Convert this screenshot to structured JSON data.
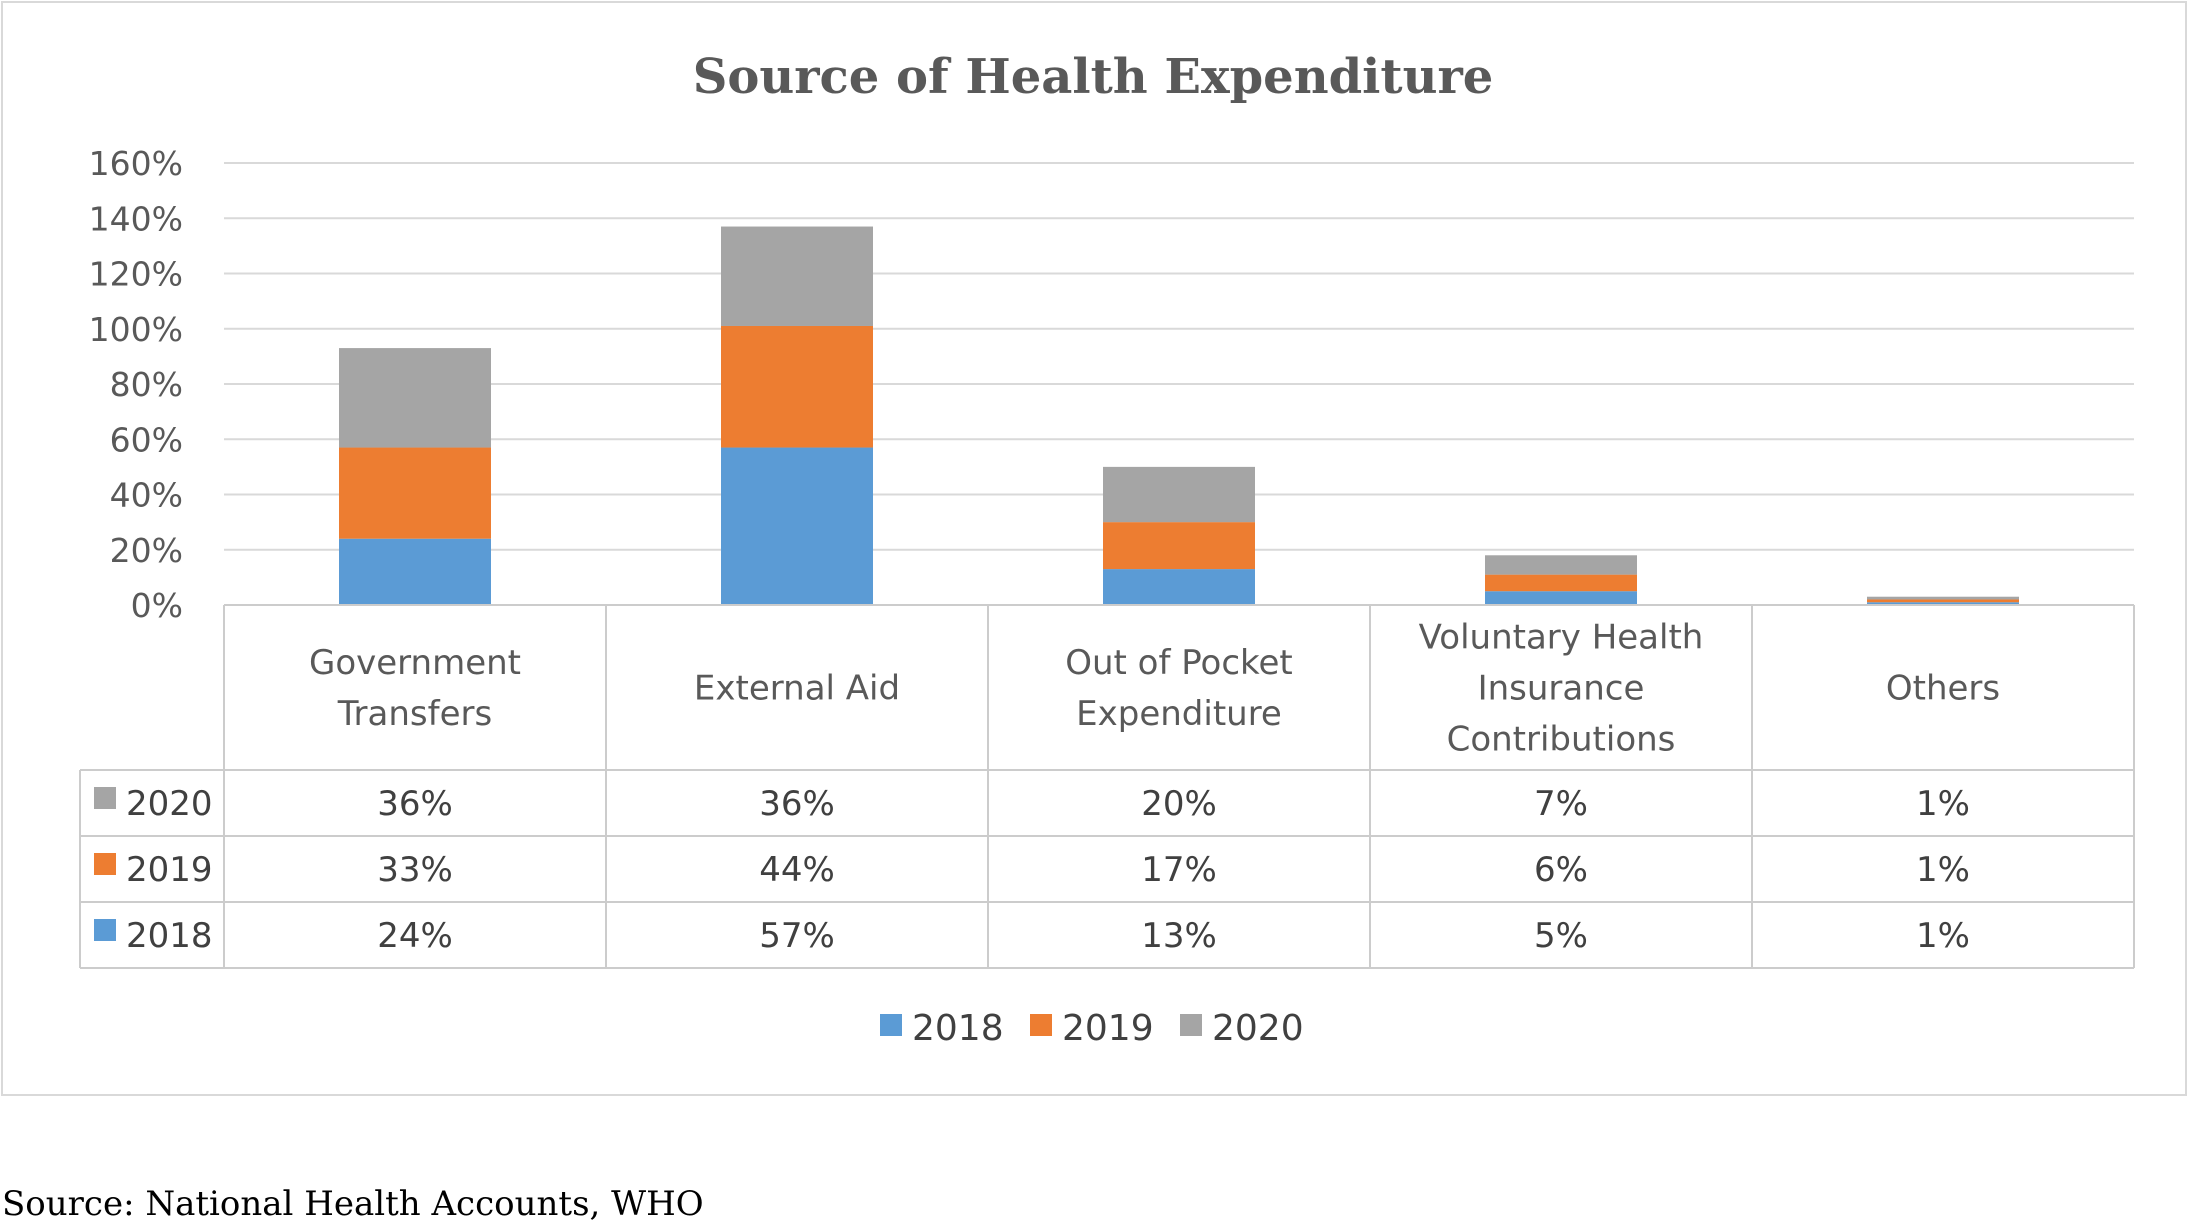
{
  "colors": {
    "2018": "#5b9bd5",
    "2019": "#ed7d31",
    "2020": "#a5a5a5",
    "grid": "#d9d9d9",
    "table_border": "#cccccc"
  },
  "chart_data": {
    "type": "bar",
    "stacked": true,
    "title": "Source of  Health Expenditure",
    "categories": [
      [
        "Government",
        "Transfers"
      ],
      [
        "External Aid"
      ],
      [
        "Out of Pocket",
        "Expenditure"
      ],
      [
        "Voluntary Health",
        "Insurance",
        "Contributions"
      ],
      [
        "Others"
      ]
    ],
    "series": [
      {
        "name": "2018",
        "color": "#5b9bd5",
        "values": [
          24,
          57,
          13,
          5,
          1
        ],
        "labels": [
          "24%",
          "57%",
          "13%",
          "5%",
          "1%"
        ]
      },
      {
        "name": "2019",
        "color": "#ed7d31",
        "values": [
          33,
          44,
          17,
          6,
          1
        ],
        "labels": [
          "33%",
          "44%",
          "17%",
          "6%",
          "1%"
        ]
      },
      {
        "name": "2020",
        "color": "#a5a5a5",
        "values": [
          36,
          36,
          20,
          7,
          1
        ],
        "labels": [
          "36%",
          "36%",
          "20%",
          "7%",
          "1%"
        ]
      }
    ],
    "yticks": [
      "0%",
      "20%",
      "40%",
      "60%",
      "80%",
      "100%",
      "120%",
      "140%",
      "160%"
    ],
    "ylim": [
      0,
      160
    ],
    "grid": true,
    "data_table": true,
    "table_row_order": [
      "2020",
      "2019",
      "2018"
    ],
    "legend": {
      "position": "bottom",
      "entries": [
        "2018",
        "2019",
        "2020"
      ]
    }
  },
  "source_note": "Source: National Health Accounts, WHO"
}
